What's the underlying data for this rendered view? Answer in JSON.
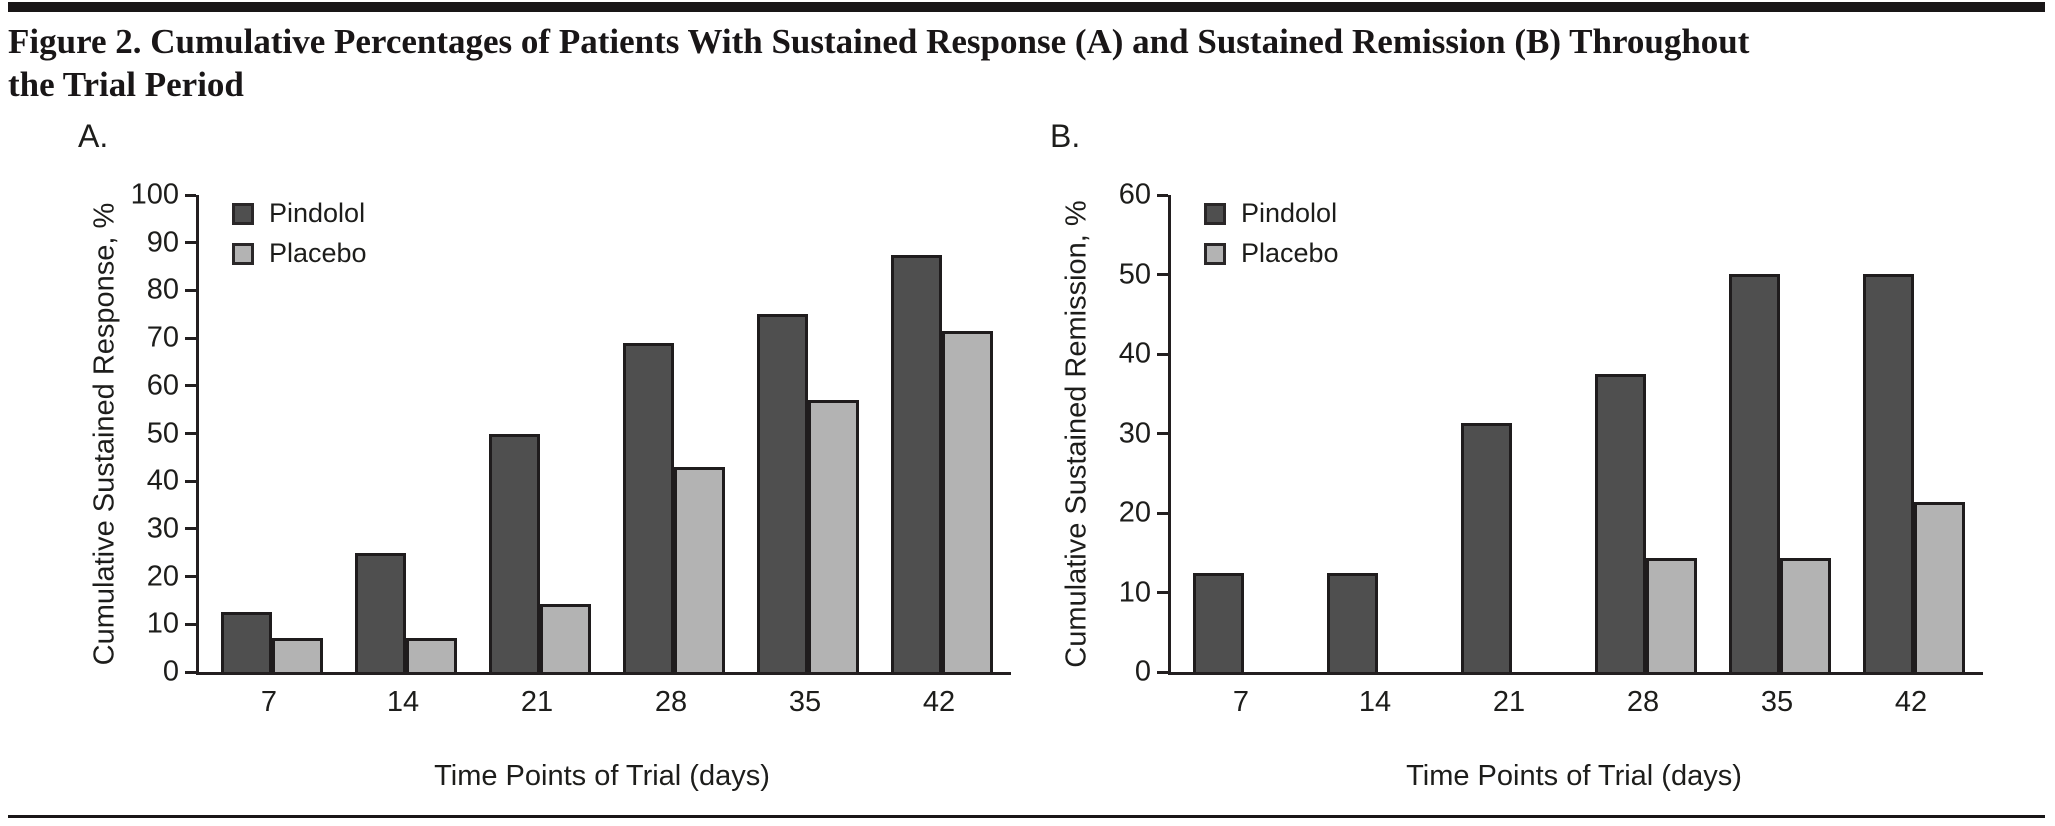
{
  "header": {
    "title_line1": "Figure 2. Cumulative Percentages of Patients With Sustained Response (A) and Sustained Remission (B) Throughout",
    "title_line2": "the Trial Period"
  },
  "colors": {
    "pindolol": "#4f4f4f",
    "placebo": "#b3b3b3",
    "axis_stroke": "#231f20",
    "rule": "#191617"
  },
  "chart_data": [
    {
      "type": "bar",
      "panel_label": "A.",
      "ylabel": "Cumulative Sustained Response, %",
      "xlabel": "Time Points of Trial (days)",
      "categories": [
        "7",
        "14",
        "21",
        "28",
        "35",
        "42"
      ],
      "ylim": [
        0,
        100
      ],
      "yticks": [
        0,
        10,
        20,
        30,
        40,
        50,
        60,
        70,
        80,
        90,
        100
      ],
      "grid": false,
      "legend_position": "top-left-inside",
      "series": [
        {
          "name": "Pindolol",
          "color": "#4f4f4f",
          "values": [
            12.5,
            25,
            50,
            69,
            75,
            87.5
          ]
        },
        {
          "name": "Placebo",
          "color": "#b3b3b3",
          "values": [
            7.1,
            7.1,
            14.3,
            42.9,
            57.1,
            71.4
          ]
        }
      ]
    },
    {
      "type": "bar",
      "panel_label": "B.",
      "ylabel": "Cumulative Sustained Remission, %",
      "xlabel": "Time Points of Trial (days)",
      "categories": [
        "7",
        "14",
        "21",
        "28",
        "35",
        "42"
      ],
      "ylim": [
        0,
        60
      ],
      "yticks": [
        0,
        10,
        20,
        30,
        40,
        50,
        60
      ],
      "grid": false,
      "legend_position": "top-left-inside",
      "series": [
        {
          "name": "Pindolol",
          "color": "#4f4f4f",
          "values": [
            12.5,
            12.5,
            31.3,
            37.5,
            50,
            50
          ]
        },
        {
          "name": "Placebo",
          "color": "#b3b3b3",
          "values": [
            0,
            0,
            0,
            14.3,
            14.3,
            21.4
          ]
        }
      ]
    }
  ]
}
